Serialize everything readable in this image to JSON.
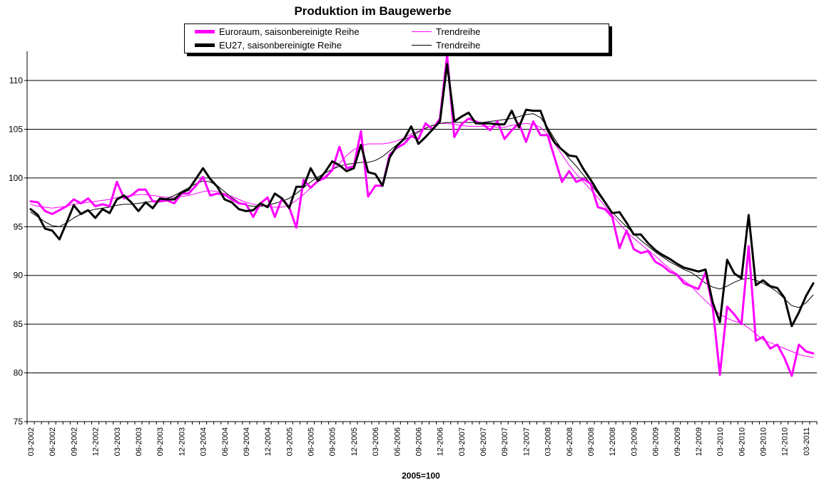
{
  "chart_data": {
    "type": "line",
    "title": "Produktion im Baugewerbe",
    "xlabel": "2005=100",
    "ylabel": "",
    "ylim": [
      75,
      113
    ],
    "yticks": [
      75,
      80,
      85,
      90,
      95,
      100,
      105,
      110
    ],
    "grid": "horizontal",
    "legend_position": "top",
    "x_tick_labels": [
      "03-2002",
      "06-2002",
      "09-2002",
      "12-2002",
      "03-2003",
      "06-2003",
      "09-2003",
      "12-2003",
      "03-2004",
      "06-2004",
      "09-2004",
      "12-2004",
      "03-2005",
      "06-2005",
      "09-2005",
      "12-2005",
      "03-2006",
      "06-2006",
      "09-2006",
      "12-2006",
      "03-2007",
      "06-2007",
      "09-2007",
      "12-2007",
      "03-2008",
      "06-2008",
      "09-2008",
      "12-2008",
      "03-2009",
      "06-2009",
      "09-2009",
      "12-2009",
      "03-2010",
      "06-2010",
      "09-2010",
      "12-2010",
      "03-2011"
    ],
    "series": [
      {
        "name": "Euroraum, saisonbereinigte Reihe",
        "color": "#ff00ff",
        "style": "thick",
        "values": [
          97.6,
          97.5,
          96.6,
          96.3,
          96.7,
          97.1,
          97.8,
          97.4,
          97.9,
          97.1,
          97.3,
          97.1,
          99.6,
          97.9,
          98.2,
          98.8,
          98.8,
          97.6,
          97.6,
          97.7,
          97.4,
          98.4,
          98.4,
          99.2,
          100.1,
          98.2,
          98.4,
          98.3,
          97.8,
          97.4,
          97.3,
          96.0,
          97.4,
          98.0,
          96.0,
          97.9,
          97.0,
          94.9,
          99.8,
          99.0,
          99.7,
          100.0,
          100.8,
          103.2,
          101.0,
          101.2,
          104.8,
          98.1,
          99.2,
          99.2,
          102.4,
          103.1,
          103.5,
          104.3,
          104.0,
          105.6,
          105.0,
          106.1,
          112.6,
          104.2,
          105.5,
          106.1,
          105.8,
          105.5,
          104.9,
          105.8,
          104.0,
          104.9,
          105.6,
          103.7,
          105.8,
          104.4,
          104.4,
          102.0,
          99.6,
          100.7,
          99.6,
          99.9,
          99.4,
          97.0,
          96.8,
          96.0,
          92.8,
          94.6,
          92.7,
          92.3,
          92.5,
          91.4,
          91.0,
          90.4,
          90.1,
          89.2,
          88.9,
          88.6,
          90.3,
          86.7,
          79.8,
          86.8,
          86.0,
          85.0,
          93.0,
          83.3,
          83.7,
          82.5,
          82.9,
          81.5,
          79.7,
          82.9,
          82.2,
          82.0
        ]
      },
      {
        "name": "Trendreihe",
        "color": "#ff00ff",
        "style": "thin",
        "values": [
          97.3,
          97.1,
          97.0,
          96.9,
          97.0,
          97.1,
          97.3,
          97.4,
          97.5,
          97.6,
          97.7,
          97.8,
          98.0,
          98.1,
          98.2,
          98.3,
          98.3,
          98.2,
          98.1,
          98.0,
          98.0,
          98.1,
          98.2,
          98.4,
          98.6,
          98.7,
          98.6,
          98.4,
          98.1,
          97.8,
          97.5,
          97.3,
          97.2,
          97.1,
          97.0,
          97.0,
          97.2,
          97.7,
          98.3,
          99.0,
          99.6,
          100.2,
          100.8,
          101.5,
          102.3,
          102.9,
          103.3,
          103.5,
          103.5,
          103.5,
          103.6,
          103.8,
          104.1,
          104.5,
          104.8,
          105.1,
          105.4,
          105.6,
          105.6,
          105.5,
          105.4,
          105.3,
          105.3,
          105.3,
          105.3,
          105.2,
          105.2,
          105.4,
          105.5,
          105.6,
          105.5,
          105.2,
          104.5,
          103.5,
          102.4,
          101.3,
          100.4,
          99.6,
          98.8,
          98.0,
          97.1,
          96.2,
          95.3,
          94.5,
          93.8,
          93.2,
          92.6,
          92.0,
          91.3,
          90.7,
          90.1,
          89.5,
          88.9,
          88.1,
          87.4,
          86.7,
          86.0,
          85.6,
          85.3,
          85.1,
          84.6,
          84.0,
          83.4,
          83.1,
          82.8,
          82.5,
          82.2,
          81.9,
          81.7,
          81.6
        ]
      },
      {
        "name": "EU27, saisonbereinigte Reihe",
        "color": "#000000",
        "style": "thick",
        "values": [
          96.8,
          96.2,
          94.8,
          94.6,
          93.7,
          95.4,
          97.2,
          96.3,
          96.7,
          95.9,
          96.8,
          96.4,
          97.8,
          98.2,
          97.5,
          96.6,
          97.5,
          96.9,
          97.9,
          97.8,
          97.8,
          98.5,
          98.8,
          99.9,
          101.0,
          99.9,
          99.1,
          97.8,
          97.5,
          96.8,
          96.6,
          96.7,
          97.4,
          97.0,
          98.4,
          97.9,
          96.9,
          99.1,
          99.1,
          101.0,
          99.7,
          100.6,
          101.7,
          101.3,
          100.7,
          101.0,
          103.4,
          100.6,
          100.4,
          99.2,
          102.1,
          103.3,
          104.0,
          105.3,
          103.5,
          104.2,
          105.0,
          105.8,
          111.7,
          105.8,
          106.3,
          106.7,
          105.6,
          105.6,
          105.6,
          105.5,
          105.5,
          106.9,
          105.2,
          107.0,
          106.9,
          106.9,
          104.9,
          103.6,
          102.9,
          102.3,
          102.2,
          100.9,
          99.8,
          98.6,
          97.5,
          96.4,
          96.5,
          95.4,
          94.2,
          94.2,
          93.3,
          92.6,
          92.1,
          91.7,
          91.2,
          90.8,
          90.6,
          90.4,
          90.6,
          87.2,
          85.2,
          91.6,
          90.2,
          89.7,
          96.2,
          89.0,
          89.5,
          88.9,
          88.7,
          87.7,
          84.8,
          86.2,
          87.9,
          89.2
        ]
      },
      {
        "name": "Trendreihe",
        "color": "#000000",
        "style": "thin",
        "values": [
          96.5,
          96.0,
          95.5,
          95.1,
          95.0,
          95.4,
          95.9,
          96.3,
          96.6,
          96.8,
          96.9,
          97.0,
          97.2,
          97.3,
          97.3,
          97.4,
          97.5,
          97.6,
          97.7,
          97.9,
          98.2,
          98.6,
          99.0,
          99.4,
          99.7,
          99.6,
          99.2,
          98.6,
          98.0,
          97.5,
          97.2,
          97.1,
          97.1,
          97.2,
          97.4,
          97.6,
          97.9,
          98.4,
          99.0,
          99.6,
          100.1,
          100.5,
          100.9,
          101.2,
          101.4,
          101.5,
          101.6,
          101.6,
          101.8,
          102.2,
          102.8,
          103.4,
          103.9,
          104.3,
          104.7,
          105.1,
          105.4,
          105.6,
          105.7,
          105.7,
          105.7,
          105.7,
          105.7,
          105.7,
          105.8,
          105.9,
          106.0,
          106.1,
          106.3,
          106.5,
          106.6,
          106.2,
          105.2,
          104.0,
          102.9,
          102.0,
          101.2,
          100.3,
          99.4,
          98.4,
          97.4,
          96.5,
          95.7,
          95.0,
          94.3,
          93.6,
          93.0,
          92.4,
          91.9,
          91.4,
          91.0,
          90.6,
          90.3,
          89.8,
          89.2,
          88.8,
          88.6,
          88.9,
          89.3,
          89.6,
          89.7,
          89.5,
          89.2,
          88.8,
          88.3,
          87.6,
          86.9,
          86.7,
          87.2,
          88.0
        ]
      }
    ]
  }
}
